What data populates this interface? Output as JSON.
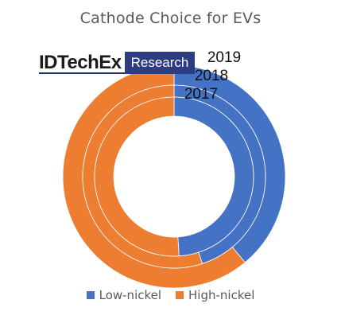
{
  "logo": {
    "main": "IDTechEx",
    "sub": "Research"
  },
  "chart_data": {
    "type": "pie",
    "variant": "multi-ring donut",
    "title": "Cathode Choice for EVs",
    "categories": [
      "Low-nickel",
      "High-nickel"
    ],
    "colors": {
      "Low-nickel": "#4472c4",
      "High-nickel": "#ed7d31"
    },
    "series": [
      {
        "name": "2019",
        "ring": "outer",
        "values": [
          39,
          61
        ]
      },
      {
        "name": "2018",
        "ring": "middle",
        "values": [
          45,
          55
        ]
      },
      {
        "name": "2017",
        "ring": "inner",
        "values": [
          49,
          51
        ]
      }
    ],
    "legend": {
      "position": "bottom",
      "entries": [
        "Low-nickel",
        "High-nickel"
      ]
    }
  }
}
